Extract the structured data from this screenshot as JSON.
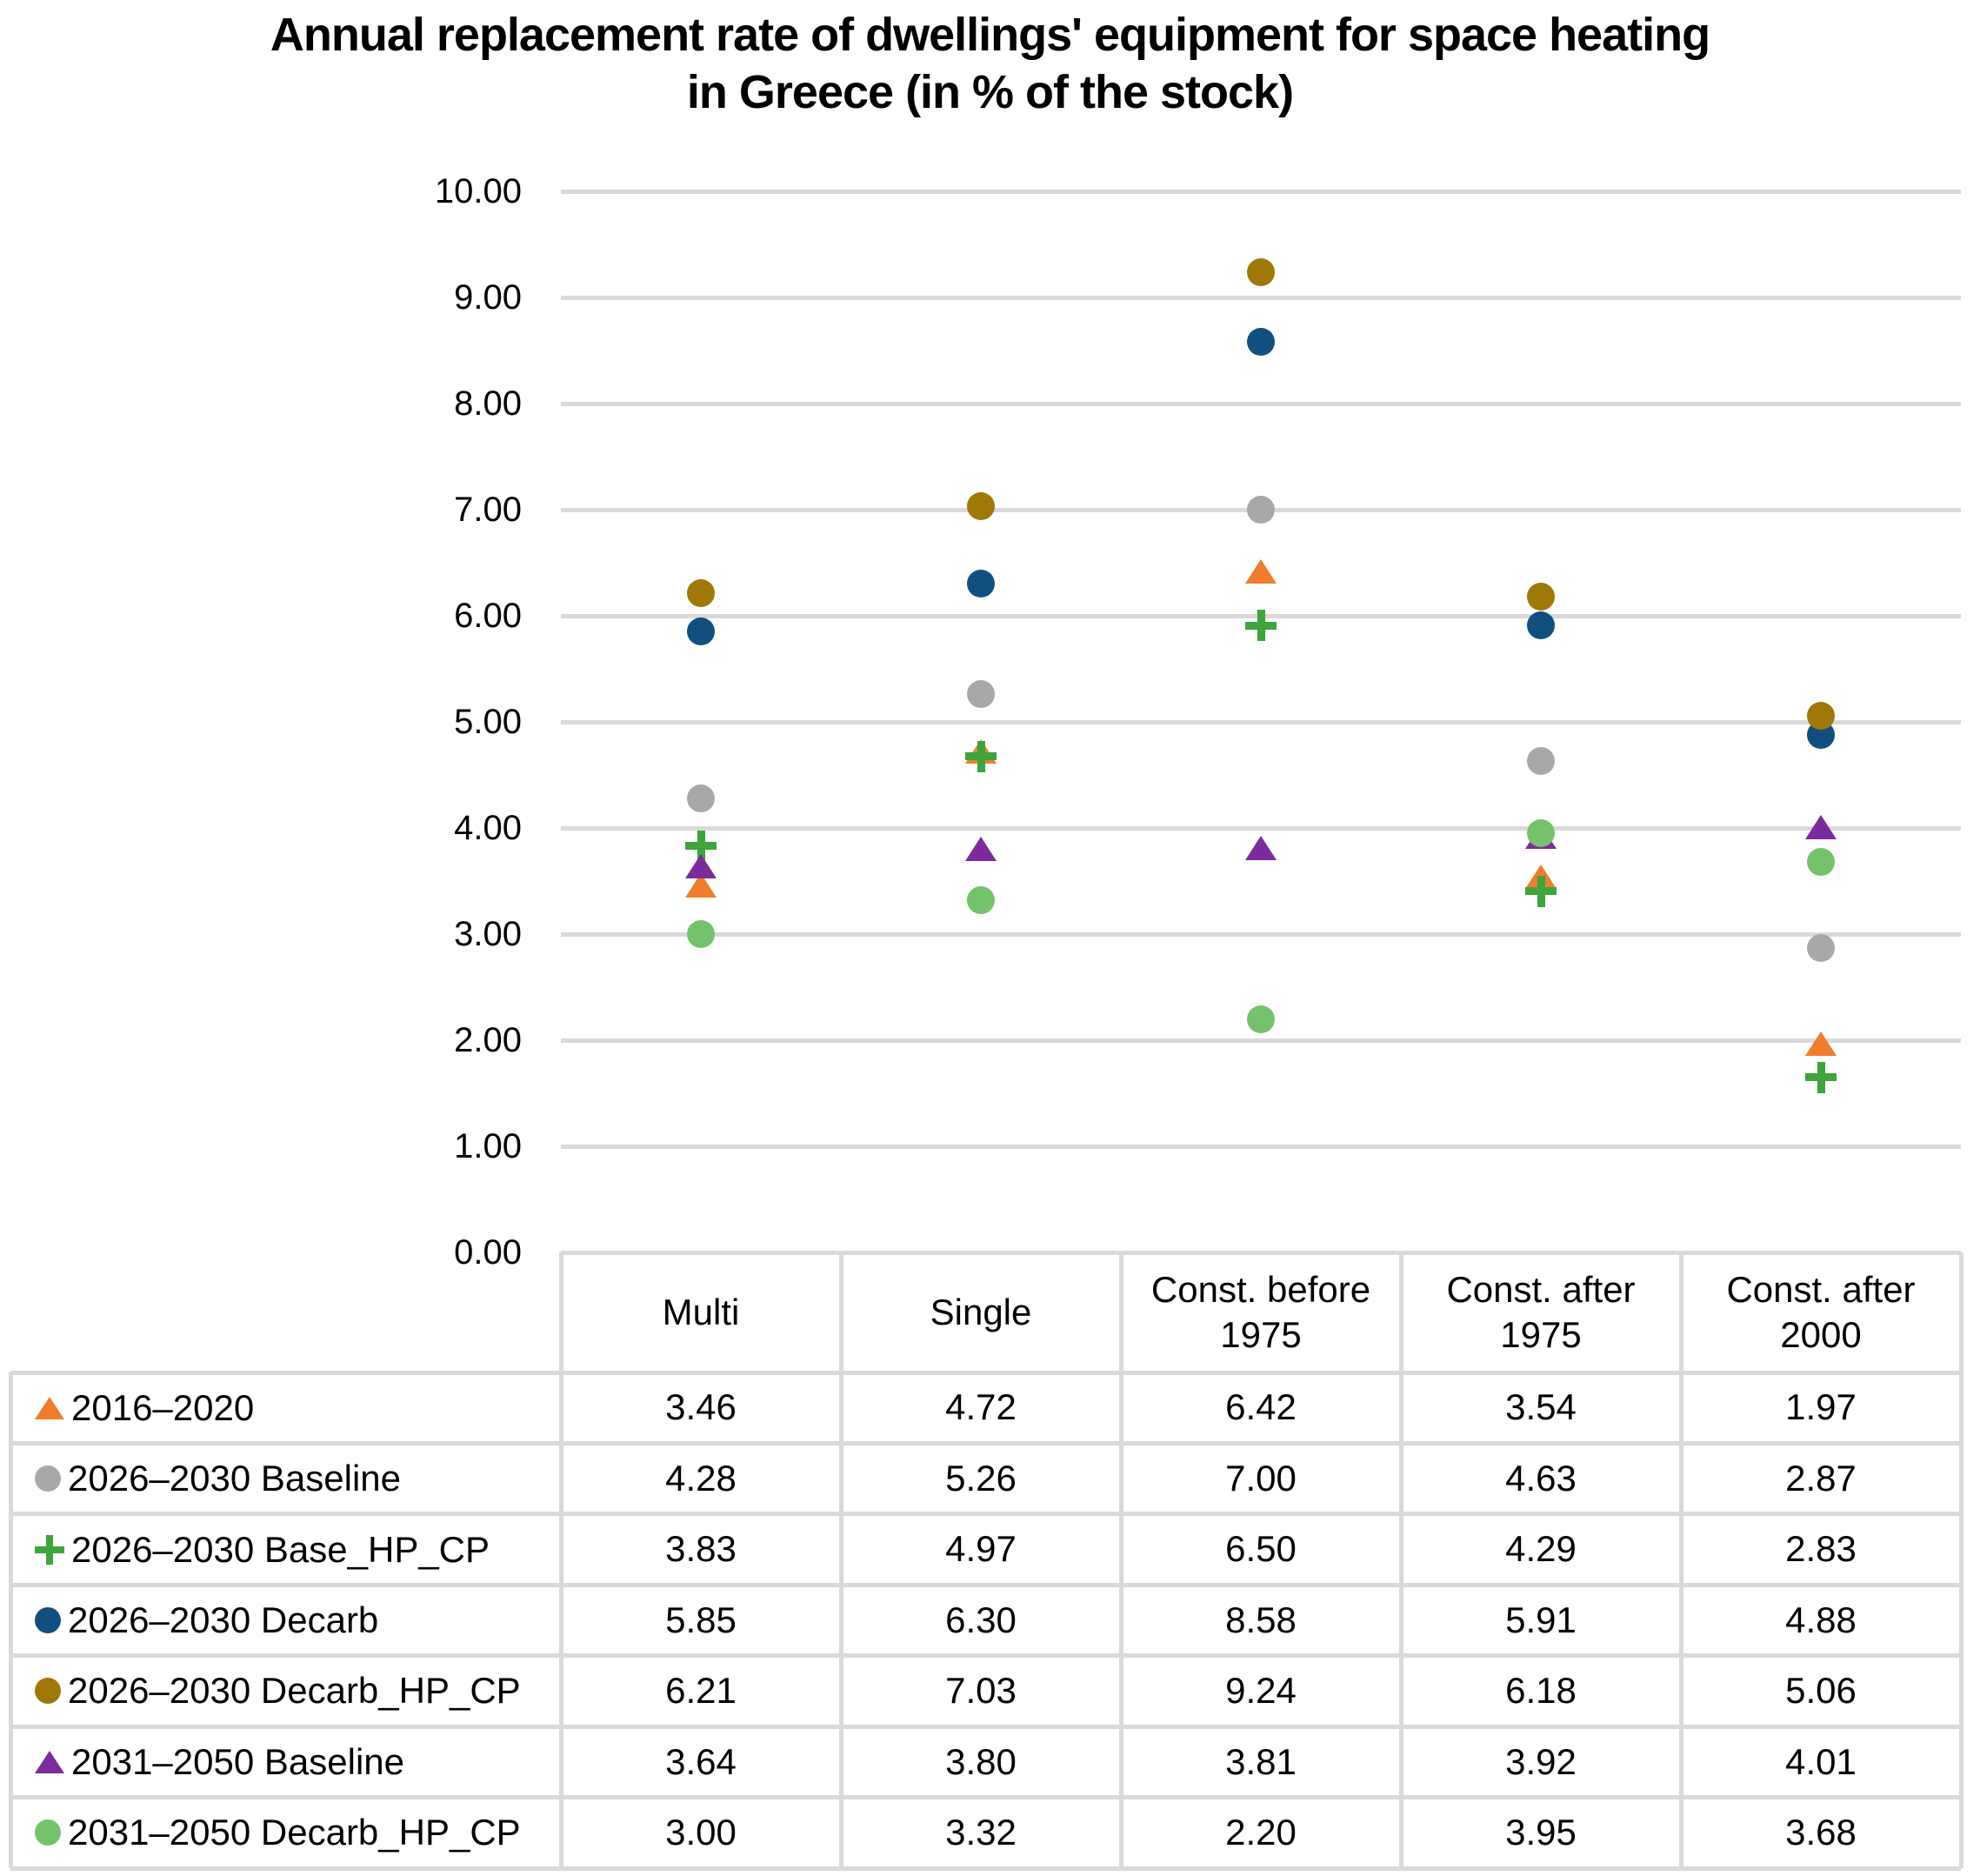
{
  "title": {
    "line1": "Annual replacement rate of dwellings' equipment for space heating",
    "line2": "in Greece (in % of the stock)"
  },
  "chart_data": {
    "type": "scatter",
    "title": "Annual replacement rate of dwellings' equipment for space heating in Greece (in % of the stock)",
    "categories": [
      "Multi",
      "Single",
      "Const. before 1975",
      "Const. after 1975",
      "Const. after 2000"
    ],
    "series": [
      {
        "name": "2016–2020",
        "marker": "triangle",
        "color": "#F07D2B",
        "values": [
          3.46,
          4.72,
          6.42,
          3.54,
          1.97
        ]
      },
      {
        "name": "2026–2030 Baseline",
        "marker": "circle",
        "color": "#A8A8A8",
        "values": [
          4.28,
          5.26,
          7.0,
          4.63,
          2.87
        ]
      },
      {
        "name": "2026–2030 Base_HP_CP",
        "marker": "plus",
        "color": "#3EA43C",
        "values": [
          3.83,
          4.97,
          6.5,
          4.29,
          2.83
        ]
      },
      {
        "name": "2026–2030 Decarb",
        "marker": "circle",
        "color": "#11507E",
        "values": [
          5.85,
          6.3,
          8.58,
          5.91,
          4.88
        ]
      },
      {
        "name": "2026–2030 Decarb_HP_CP",
        "marker": "circle",
        "color": "#A07808",
        "values": [
          6.21,
          7.03,
          9.24,
          6.18,
          5.06
        ]
      },
      {
        "name": "2031–2050 Baseline",
        "marker": "triangle",
        "color": "#7B2B9B",
        "values": [
          3.64,
          3.8,
          3.81,
          3.92,
          4.01
        ]
      },
      {
        "name": "2031–2050 Decarb_HP_CP",
        "marker": "circle",
        "color": "#74C36A",
        "values": [
          3.0,
          3.32,
          2.2,
          3.95,
          3.68
        ]
      }
    ],
    "y_axis": {
      "min": 0,
      "max": 10,
      "step": 1,
      "tick_labels": [
        "0.00",
        "1.00",
        "2.00",
        "3.00",
        "4.00",
        "5.00",
        "6.00",
        "7.00",
        "8.00",
        "9.00",
        "10.00"
      ]
    },
    "grid": true,
    "legend_position": "table-first-column",
    "value_decimals": 2,
    "colors": {
      "gridline": "#d9d9d9",
      "table_border": "#d9d9d9",
      "text": "#000000",
      "background": "#ffffff"
    }
  }
}
